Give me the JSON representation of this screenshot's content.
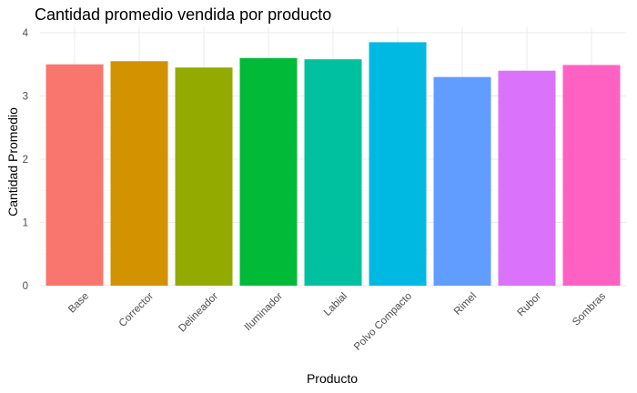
{
  "chart_data": {
    "type": "bar",
    "title": "Cantidad promedio vendida por producto",
    "xlabel": "Producto",
    "ylabel": "Cantidad Promedio",
    "categories": [
      "Base",
      "Corrector",
      "Delineador",
      "Iluminador",
      "Labial",
      "Polvo Compacto",
      "Rimel",
      "Rubor",
      "Sombras"
    ],
    "values": [
      3.5,
      3.55,
      3.45,
      3.6,
      3.58,
      3.85,
      3.3,
      3.4,
      3.49
    ],
    "colors": [
      "#F8766D",
      "#D39200",
      "#93AA00",
      "#00BA38",
      "#00C19F",
      "#00B9E3",
      "#619CFF",
      "#DB72FB",
      "#FF61C3"
    ],
    "ylim": [
      0,
      4
    ],
    "yticks": [
      0,
      1,
      2,
      3,
      4
    ],
    "grid": true,
    "legend": "none"
  }
}
